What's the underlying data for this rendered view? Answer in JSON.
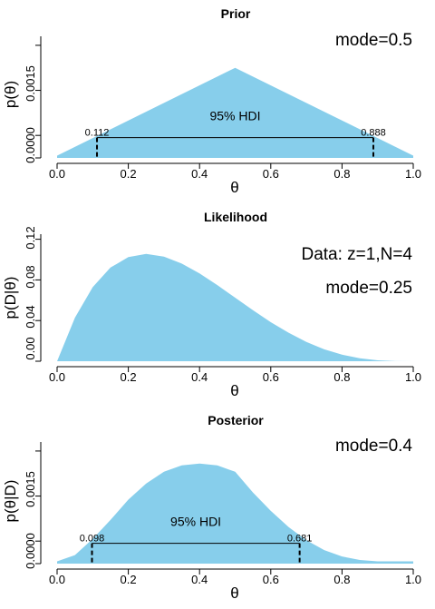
{
  "colors": {
    "fill": "#87ceeb",
    "ink": "#000000"
  },
  "chart_data": [
    {
      "type": "area",
      "title": "Prior",
      "xlabel": "θ",
      "ylabel": "p(θ)",
      "xlim": [
        0,
        1
      ],
      "ylim": [
        0,
        0.0027
      ],
      "x_ticks": [
        0,
        0.2,
        0.4,
        0.6,
        0.8,
        1
      ],
      "x_tick_labels": [
        "0.0",
        "0.2",
        "0.4",
        "0.6",
        "0.8",
        "1.0"
      ],
      "y_ticks": [
        0,
        0.0015
      ],
      "y_tick_labels": [
        "0.0000",
        "0.0015"
      ],
      "x": [
        0,
        0.5,
        1
      ],
      "y": [
        5e-05,
        0.002,
        5e-05
      ],
      "annotations": [
        "mode=0.5"
      ],
      "hdi": {
        "label": "95% HDI",
        "low": 0.112,
        "high": 0.888,
        "low_label": "0.112",
        "high_label": "0.888",
        "height": 0.00045
      }
    },
    {
      "type": "area",
      "title": "Likelihood",
      "xlabel": "θ",
      "ylabel": "p(D|θ)",
      "xlim": [
        0,
        1
      ],
      "ylim": [
        0,
        0.125
      ],
      "x_ticks": [
        0,
        0.2,
        0.4,
        0.6,
        0.8,
        1
      ],
      "x_tick_labels": [
        "0.0",
        "0.2",
        "0.4",
        "0.6",
        "0.8",
        "1.0"
      ],
      "y_ticks": [
        0,
        0.04,
        0.08,
        0.12
      ],
      "y_tick_labels": [
        "0.00",
        "0.04",
        "0.08",
        "0.12"
      ],
      "x": [
        0,
        0.05,
        0.1,
        0.15,
        0.2,
        0.25,
        0.3,
        0.35,
        0.4,
        0.45,
        0.5,
        0.55,
        0.6,
        0.65,
        0.7,
        0.75,
        0.8,
        0.85,
        0.9,
        0.95,
        1
      ],
      "y": [
        0,
        0.0429,
        0.0729,
        0.0921,
        0.1024,
        0.1055,
        0.1029,
        0.0961,
        0.0864,
        0.0749,
        0.0625,
        0.0502,
        0.0384,
        0.028,
        0.0189,
        0.0117,
        0.0064,
        0.0029,
        0.0009,
        0.0001,
        0
      ],
      "annotations": [
        "Data: z=1,N=4",
        "mode=0.25"
      ]
    },
    {
      "type": "area",
      "title": "Posterior",
      "xlabel": "θ",
      "ylabel": "p(θ|D)",
      "xlim": [
        0,
        1
      ],
      "ylim": [
        0,
        0.0027
      ],
      "x_ticks": [
        0,
        0.2,
        0.4,
        0.6,
        0.8,
        1
      ],
      "x_tick_labels": [
        "0.0",
        "0.2",
        "0.4",
        "0.6",
        "0.8",
        "1.0"
      ],
      "y_ticks": [
        0,
        0.0015
      ],
      "y_tick_labels": [
        "0.0000",
        "0.0015"
      ],
      "x": [
        0,
        0.05,
        0.1,
        0.15,
        0.2,
        0.25,
        0.3,
        0.35,
        0.4,
        0.45,
        0.5,
        0.55,
        0.6,
        0.65,
        0.7,
        0.75,
        0.8,
        0.85,
        0.9,
        0.95,
        1
      ],
      "y": [
        5e-05,
        0.00019,
        0.00055,
        0.00097,
        0.00142,
        0.00178,
        0.00204,
        0.00218,
        0.00222,
        0.00218,
        0.00204,
        0.00158,
        0.00117,
        0.00081,
        0.00052,
        0.0003,
        0.00016,
        8e-05,
        5e-05,
        5e-05,
        5e-05
      ],
      "annotations": [
        "mode=0.4"
      ],
      "hdi": {
        "label": "95% HDI",
        "low": 0.098,
        "high": 0.681,
        "low_label": "0.098",
        "high_label": "0.681",
        "height": 0.00045
      }
    }
  ]
}
